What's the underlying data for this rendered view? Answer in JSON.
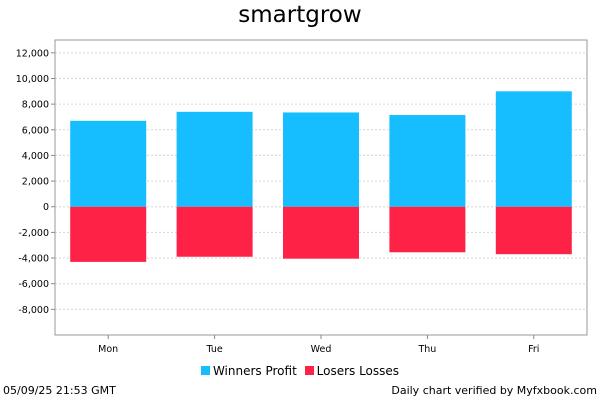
{
  "chart_data": {
    "type": "bar",
    "title": "smartgrow",
    "categories": [
      "Mon",
      "Tue",
      "Wed",
      "Thu",
      "Fri"
    ],
    "series": [
      {
        "name": "Winners Profit",
        "color": "#17BEFF",
        "values": [
          6700,
          7400,
          7350,
          7150,
          9000
        ]
      },
      {
        "name": "Losers Losses",
        "color": "#FF2247",
        "values": [
          -4300,
          -3900,
          -4050,
          -3550,
          -3700
        ]
      }
    ],
    "ylim": [
      -10000,
      13000
    ],
    "yticks": [
      "12,000",
      "10,000",
      "8,000",
      "6,000",
      "4,000",
      "2,000",
      "0",
      "-2,000",
      "-4,000",
      "-6,000",
      "-8,000"
    ],
    "grid": true,
    "legend_position": "bottom"
  },
  "footer": {
    "timestamp": "05/09/25 21:53 GMT",
    "credit": "Daily chart verified by Myfxbook.com"
  }
}
